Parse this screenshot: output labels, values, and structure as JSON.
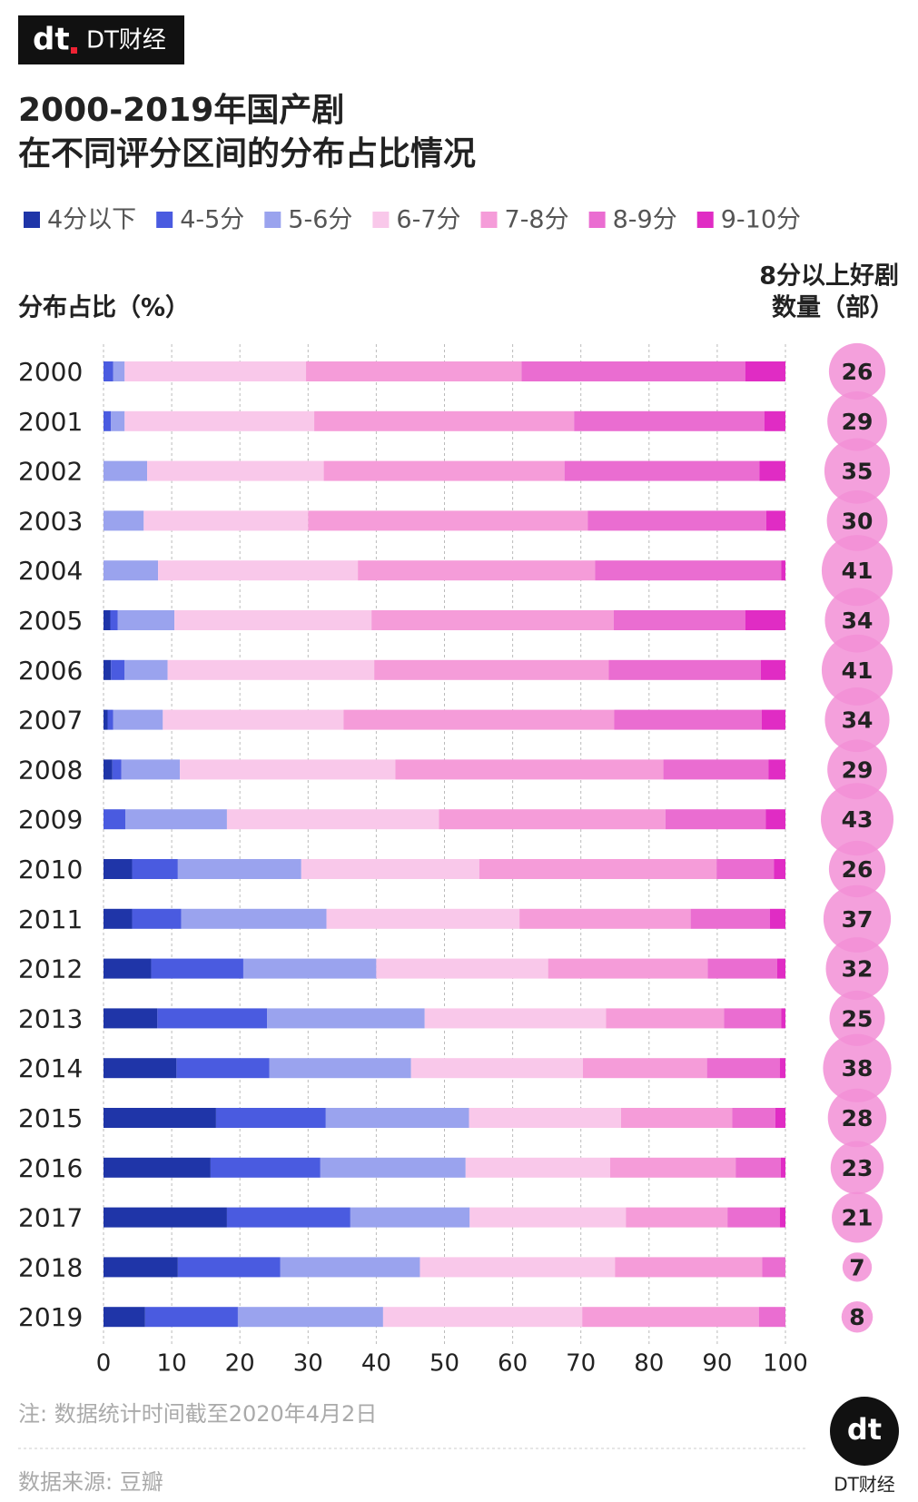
{
  "brand": "DT财经",
  "chart_data": {
    "type": "bar",
    "orientation": "horizontal",
    "stacked": true,
    "title": [
      "2000-2019年国产剧",
      "在不同评分区间的分布占比情况"
    ],
    "ylabel": "分布占比（%）",
    "counts_label": [
      "8分以上好剧",
      "数量（部）"
    ],
    "categories": [
      "2000",
      "2001",
      "2002",
      "2003",
      "2004",
      "2005",
      "2006",
      "2007",
      "2008",
      "2009",
      "2010",
      "2011",
      "2012",
      "2013",
      "2014",
      "2015",
      "2016",
      "2017",
      "2018",
      "2019"
    ],
    "series": [
      {
        "name": "4分以下",
        "color": "#1f35a8",
        "values": [
          0,
          0,
          0,
          0,
          0,
          1.0,
          1.1,
          0.6,
          1.3,
          0,
          4.2,
          4.2,
          7.0,
          7.9,
          10.7,
          16.5,
          15.7,
          18.1,
          10.9,
          6.1
        ]
      },
      {
        "name": "4-5分",
        "color": "#4a5be0",
        "values": [
          1.4,
          1.1,
          0,
          0,
          0,
          1.1,
          2.0,
          0.8,
          1.3,
          3.2,
          6.7,
          7.2,
          13.5,
          16.1,
          13.6,
          16.1,
          16.1,
          18.1,
          15.0,
          13.6
        ]
      },
      {
        "name": "5-6分",
        "color": "#9aa3ee",
        "values": [
          1.7,
          2.0,
          6.4,
          5.9,
          8.0,
          8.3,
          6.3,
          7.3,
          8.6,
          14.9,
          18.1,
          21.3,
          19.5,
          23.1,
          20.8,
          21.0,
          21.3,
          17.5,
          20.5,
          21.3
        ]
      },
      {
        "name": "6-7分",
        "color": "#f9c8ea",
        "values": [
          26.6,
          27.8,
          25.9,
          24.1,
          29.3,
          28.9,
          30.3,
          26.5,
          31.6,
          31.1,
          26.1,
          28.3,
          25.2,
          26.6,
          25.2,
          22.3,
          21.2,
          22.9,
          28.6,
          29.2
        ]
      },
      {
        "name": "7-8分",
        "color": "#f59cd9",
        "values": [
          31.6,
          38.1,
          35.3,
          41.0,
          34.8,
          35.5,
          34.4,
          39.7,
          39.3,
          33.2,
          34.8,
          25.1,
          23.4,
          17.3,
          18.2,
          16.3,
          18.4,
          14.9,
          21.6,
          25.9
        ]
      },
      {
        "name": "8-9分",
        "color": "#ea6dd1",
        "values": [
          32.8,
          27.9,
          28.6,
          26.2,
          27.3,
          19.3,
          22.3,
          21.6,
          15.4,
          14.7,
          8.4,
          11.6,
          10.2,
          8.4,
          10.7,
          6.3,
          6.6,
          7.7,
          3.4,
          3.9
        ]
      },
      {
        "name": "9-10分",
        "color": "#e02cc4",
        "values": [
          5.9,
          3.1,
          3.8,
          2.8,
          0.6,
          5.9,
          3.6,
          3.5,
          2.5,
          2.9,
          1.7,
          2.3,
          1.2,
          0.6,
          0.8,
          1.5,
          0.7,
          0.8,
          0,
          0
        ]
      }
    ],
    "counts": [
      26,
      29,
      35,
      30,
      41,
      34,
      41,
      34,
      29,
      43,
      26,
      37,
      32,
      25,
      38,
      28,
      23,
      21,
      7,
      8
    ],
    "counts_color": "#f28fd6",
    "xlim": [
      0,
      100
    ],
    "xticks": [
      0,
      10,
      20,
      30,
      40,
      50,
      60,
      70,
      80,
      90,
      100
    ],
    "grid": true,
    "note": "注: 数据统计时间截至2020年4月2日",
    "source": "数据来源: 豆瓣"
  }
}
